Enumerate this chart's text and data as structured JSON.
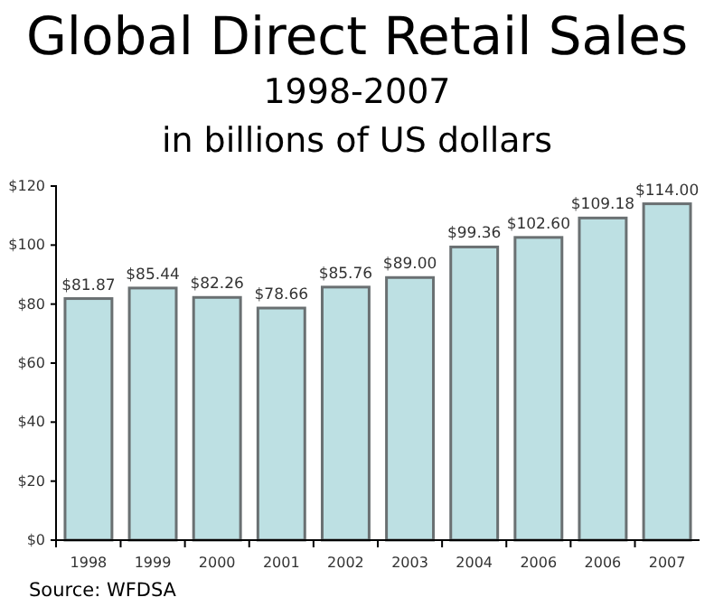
{
  "chart_data": {
    "type": "bar",
    "title": "Global Direct Retail Sales",
    "subtitle": "1998-2007\nin billions of US dollars",
    "categories": [
      "1998",
      "1999",
      "2000",
      "2001",
      "2002",
      "2003",
      "2004",
      "2006",
      "2006",
      "2007"
    ],
    "values": [
      81.87,
      85.44,
      82.26,
      78.66,
      85.76,
      89.0,
      99.36,
      102.6,
      109.18,
      114.0
    ],
    "value_labels": [
      "$81.87",
      "$85.44",
      "$82.26",
      "$78.66",
      "$85.76",
      "$89.00",
      "$99.36",
      "$102.60",
      "$109.18",
      "$114.00"
    ],
    "color": "#bde0e3",
    "ylim": [
      0,
      120
    ],
    "yticks": [
      {
        "value": 0,
        "label": "$0"
      },
      {
        "value": 20,
        "label": "$20"
      },
      {
        "value": 40,
        "label": "$40"
      },
      {
        "value": 60,
        "label": "$60"
      },
      {
        "value": 80,
        "label": "$80"
      },
      {
        "value": 100,
        "label": "$100"
      },
      {
        "value": 120,
        "label": "$120"
      }
    ],
    "grid": false,
    "annotations": [
      "Source: WFDSA"
    ]
  }
}
